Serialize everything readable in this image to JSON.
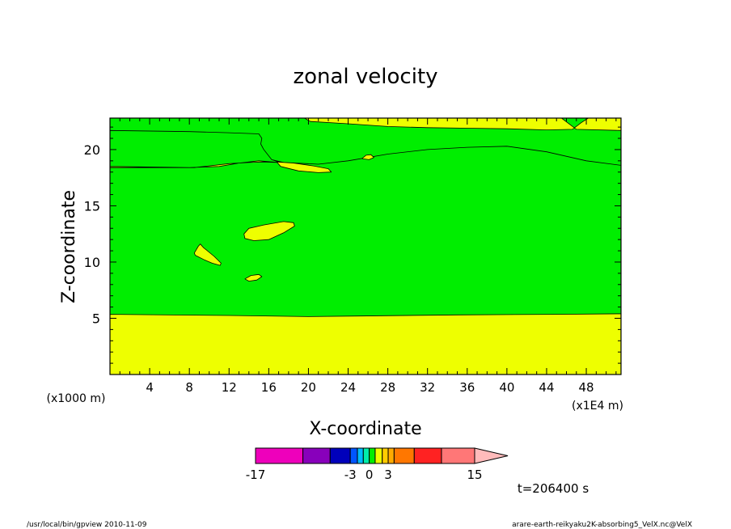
{
  "chart_data": {
    "type": "contour",
    "title": "zonal velocity",
    "xlabel": "X-coordinate",
    "ylabel": "Z-coordinate",
    "x_scale_note": "(x1E4 m)",
    "y_scale_note": "(x1000 m)",
    "xlim": [
      0,
      51.5
    ],
    "ylim": [
      0,
      22.8
    ],
    "x_ticks": [
      4,
      8,
      12,
      16,
      20,
      24,
      28,
      32,
      36,
      40,
      44,
      48
    ],
    "y_ticks": [
      5,
      10,
      15,
      20
    ],
    "x_minor_step": 1,
    "y_minor_step": 1,
    "background_level_color": "#00ee00",
    "regions": [
      {
        "name": "lower yellow band",
        "color": "#eeff00",
        "points": [
          [
            0,
            0
          ],
          [
            51.5,
            0
          ],
          [
            51.5,
            5.4
          ],
          [
            45,
            5.35
          ],
          [
            35,
            5.3
          ],
          [
            25,
            5.2
          ],
          [
            20,
            5.15
          ],
          [
            12,
            5.25
          ],
          [
            0,
            5.35
          ]
        ]
      },
      {
        "name": "upper yellow band",
        "color": "#eeff00",
        "points": [
          [
            0,
            21.7
          ],
          [
            8,
            21.6
          ],
          [
            12,
            21.5
          ],
          [
            15,
            21.4
          ],
          [
            15.3,
            21.0
          ],
          [
            15.2,
            20.5
          ],
          [
            15.5,
            20.0
          ],
          [
            16.3,
            19.1
          ],
          [
            17.0,
            18.9
          ],
          [
            17.5,
            18.85
          ],
          [
            21,
            18.7
          ],
          [
            24,
            19.0
          ],
          [
            28,
            19.6
          ],
          [
            32,
            20.0
          ],
          [
            36,
            20.2
          ],
          [
            40,
            20.3
          ],
          [
            44,
            19.8
          ],
          [
            48,
            19.0
          ],
          [
            51.5,
            18.6
          ],
          [
            51.5,
            21.7
          ],
          [
            47,
            21.8
          ],
          [
            45.5,
            22.8
          ],
          [
            19.6,
            22.8
          ],
          [
            20.2,
            22.5
          ],
          [
            24,
            22.3
          ],
          [
            28,
            22.05
          ],
          [
            32,
            21.95
          ],
          [
            36,
            21.9
          ],
          [
            40,
            21.85
          ],
          [
            44,
            21.75
          ],
          [
            46.6,
            21.8
          ],
          [
            47.5,
            22.4
          ],
          [
            48.2,
            22.8
          ],
          [
            51.5,
            22.8
          ],
          [
            51.5,
            18.6
          ],
          [
            48,
            19.0
          ],
          [
            44,
            19.8
          ],
          [
            40,
            20.3
          ],
          [
            36,
            20.2
          ],
          [
            32,
            20.0
          ],
          [
            28,
            19.6
          ],
          [
            24,
            19.0
          ],
          [
            21,
            18.7
          ],
          [
            17.5,
            18.85
          ],
          [
            16.3,
            19.1
          ],
          [
            15.5,
            20.0
          ],
          [
            15.2,
            20.5
          ],
          [
            15.3,
            21.0
          ],
          [
            15,
            21.4
          ],
          [
            12,
            21.5
          ],
          [
            8,
            21.6
          ],
          [
            0,
            21.7
          ],
          [
            0,
            18.5
          ],
          [
            8,
            18.4
          ],
          [
            11,
            18.5
          ],
          [
            13,
            18.8
          ],
          [
            15,
            19.0
          ],
          [
            17,
            18.85
          ],
          [
            15.4,
            18.9
          ],
          [
            14,
            18.85
          ],
          [
            12,
            18.75
          ],
          [
            8.5,
            18.4
          ],
          [
            0,
            18.4
          ]
        ]
      },
      {
        "name": "yellow streak near x=18",
        "color": "#eeff00",
        "points": [
          [
            16.8,
            18.9
          ],
          [
            18.5,
            18.8
          ],
          [
            20.5,
            18.55
          ],
          [
            22,
            18.3
          ],
          [
            22.3,
            18.0
          ],
          [
            21,
            17.95
          ],
          [
            19,
            18.1
          ],
          [
            17.2,
            18.5
          ]
        ]
      },
      {
        "name": "yellow blob near x=26",
        "color": "#eeff00",
        "points": [
          [
            25.4,
            19.2
          ],
          [
            25.8,
            19.5
          ],
          [
            26.3,
            19.55
          ],
          [
            26.6,
            19.3
          ],
          [
            26.1,
            19.1
          ]
        ]
      },
      {
        "name": "yellow ellipse near x=16",
        "color": "#eeff00",
        "points": [
          [
            13.5,
            12.5
          ],
          [
            14.0,
            13.0
          ],
          [
            15.5,
            13.3
          ],
          [
            17.5,
            13.6
          ],
          [
            18.5,
            13.5
          ],
          [
            18.6,
            13.2
          ],
          [
            17.5,
            12.6
          ],
          [
            16,
            12.0
          ],
          [
            14.5,
            11.9
          ],
          [
            13.6,
            12.1
          ]
        ]
      },
      {
        "name": "yellow sliver near x=10",
        "color": "#eeff00",
        "points": [
          [
            8.5,
            10.8
          ],
          [
            8.9,
            11.4
          ],
          [
            9.1,
            11.6
          ],
          [
            9.4,
            11.3
          ],
          [
            10.5,
            10.5
          ],
          [
            11.2,
            9.9
          ],
          [
            11.1,
            9.7
          ],
          [
            10.3,
            9.9
          ],
          [
            9.5,
            10.2
          ],
          [
            8.6,
            10.6
          ]
        ]
      },
      {
        "name": "yellow blob near x=14.5",
        "color": "#eeff00",
        "points": [
          [
            13.6,
            8.5
          ],
          [
            14.2,
            8.8
          ],
          [
            15.0,
            8.9
          ],
          [
            15.3,
            8.7
          ],
          [
            14.8,
            8.4
          ],
          [
            14.0,
            8.3
          ]
        ]
      }
    ],
    "colorbar": {
      "tick_labels": [
        "-17",
        "-3",
        "0",
        "3",
        "15"
      ],
      "segments": [
        {
          "weight": 4,
          "color": "#ee00bb"
        },
        {
          "weight": 2.3,
          "color": "#8800bb"
        },
        {
          "weight": 1.7,
          "color": "#0000bb"
        },
        {
          "weight": 0.6,
          "color": "#0055ff"
        },
        {
          "weight": 0.5,
          "color": "#00bbff"
        },
        {
          "weight": 0.5,
          "color": "#00eeaa"
        },
        {
          "weight": 0.5,
          "color": "#00ee00"
        },
        {
          "weight": 0.6,
          "color": "#eeff00"
        },
        {
          "weight": 0.5,
          "color": "#ffcc00"
        },
        {
          "weight": 0.5,
          "color": "#ffaa00"
        },
        {
          "weight": 1.7,
          "color": "#ff7700"
        },
        {
          "weight": 2.3,
          "color": "#ff2222"
        },
        {
          "weight": 2.8,
          "color": "#ff7777"
        },
        {
          "weight": 2.8,
          "color": "#ffbbbb",
          "arrow": true
        }
      ]
    }
  },
  "annotations": {
    "time": "t=206400 s",
    "footer_left": "/usr/local/bin/gpview  2010-11-09",
    "footer_right": "arare-earth-reikyaku2K-absorbing5_VelX.nc@VelX"
  }
}
